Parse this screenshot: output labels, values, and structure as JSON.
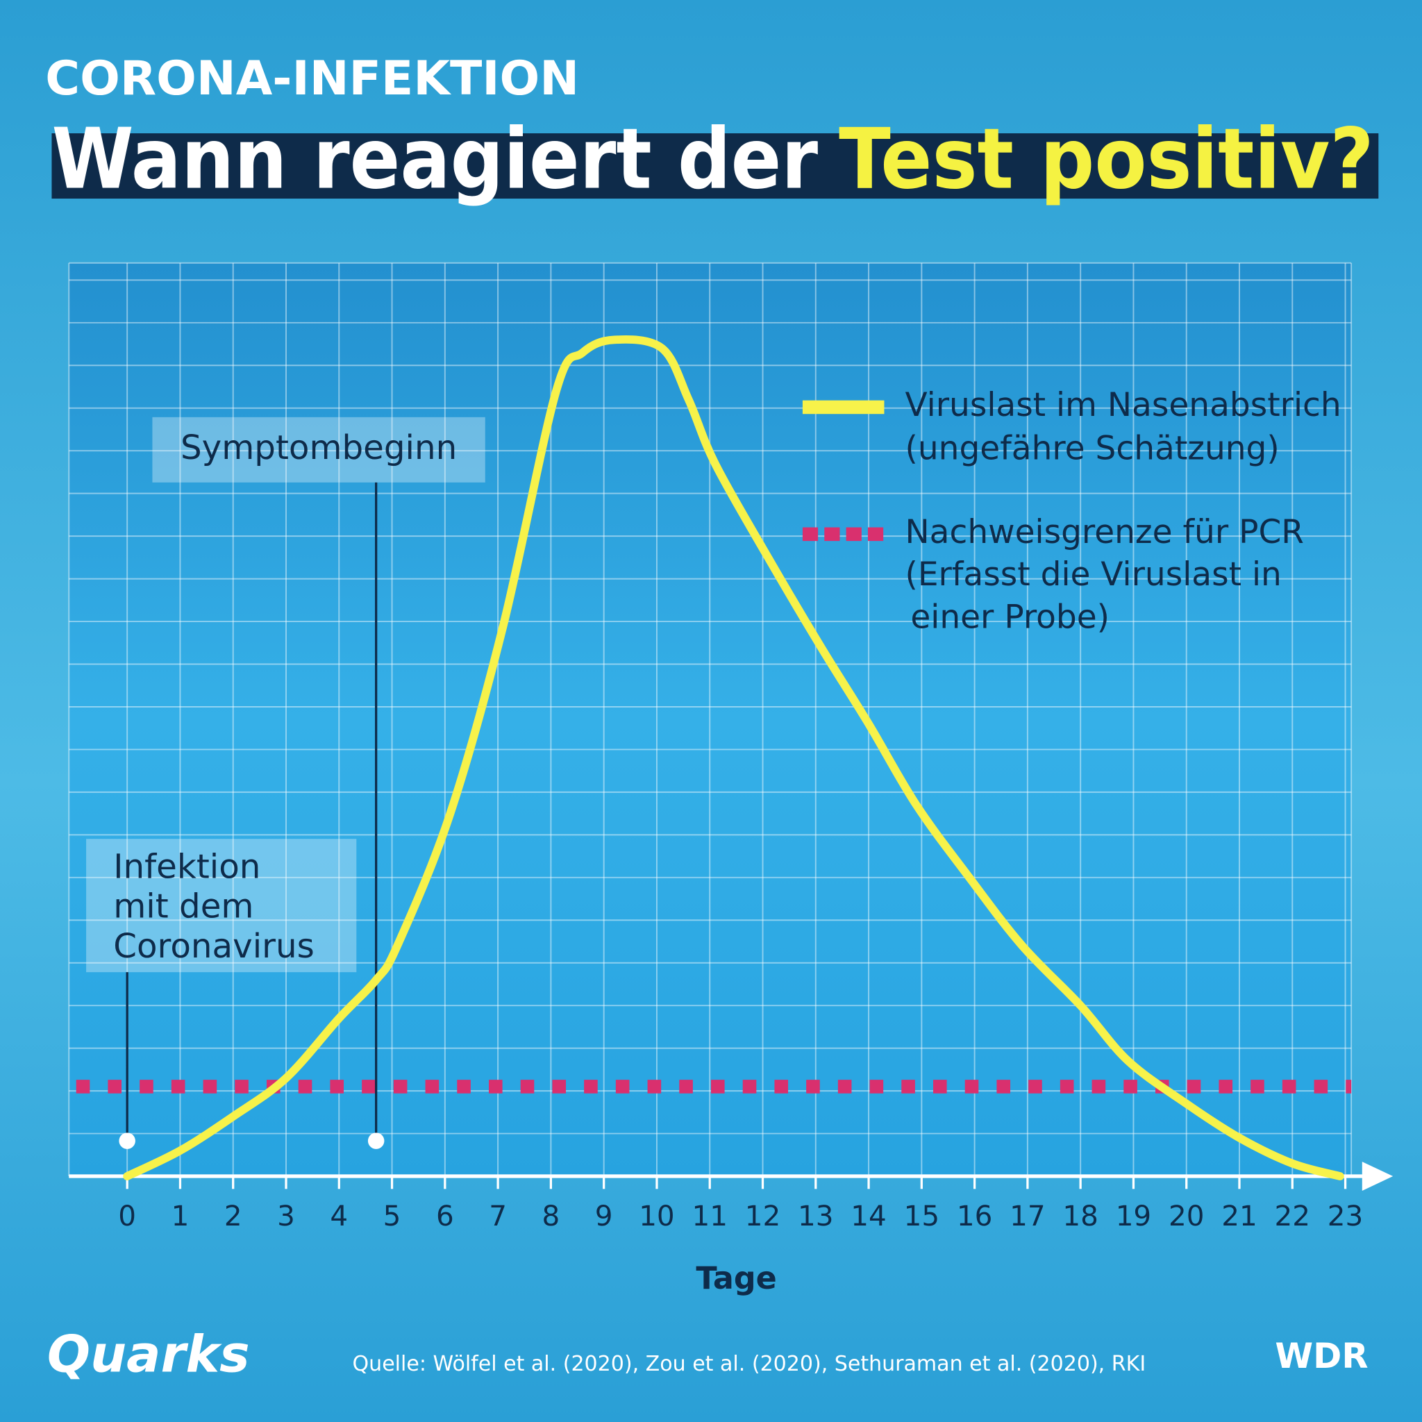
{
  "chart_data": {
    "type": "line",
    "kicker": "CORONA-INFEKTION",
    "title": [
      "Wann reagiert der",
      "Test positiv?"
    ],
    "x_label": "Tage",
    "source": "Quelle: Wölfel et al. (2020), Zou et al. (2020), Sethuraman et al. (2020), RKI",
    "logos": [
      "Quarks",
      "WDR"
    ],
    "x": [
      0,
      1,
      2,
      3,
      4,
      4.7,
      5.1,
      6.1,
      7.1,
      8.1,
      8.6,
      9.2,
      10.1,
      10.6,
      11.1,
      12.1,
      13.1,
      14,
      14.9,
      15.9,
      16.9,
      18,
      18.9,
      20,
      21,
      22,
      22.9
    ],
    "series": [
      {
        "name": "Viruslast im Nasenabstrich",
        "description": [
          "(ungefähre Schätzung)"
        ],
        "color": "#f7f24a",
        "values": [
          0,
          0.6,
          1.4,
          2.3,
          3.7,
          4.6,
          5.4,
          8.5,
          12.9,
          18.4,
          19.3,
          19.6,
          19.4,
          18.2,
          16.7,
          14.5,
          12.4,
          10.6,
          8.7,
          7,
          5.4,
          4,
          2.7,
          1.7,
          0.9,
          0.3,
          0
        ]
      }
    ],
    "threshold": {
      "name": "Nachweisgrenze für PCR",
      "description": [
        "(Erfasst die Viruslast in",
        "einer Probe)"
      ],
      "color": "#d9306e",
      "value": 2.1
    },
    "annotations": [
      {
        "x": 4.7,
        "text": [
          "Symptombeginn"
        ]
      },
      {
        "x": 0,
        "text": [
          "Infektion",
          "mit dem",
          "Coronavirus"
        ]
      }
    ],
    "xlim": [
      -1.1,
      23.9
    ],
    "ylim": [
      0,
      21.4
    ],
    "xticks": [
      0,
      1,
      2,
      3,
      4,
      5,
      6,
      7,
      8,
      9,
      10,
      11,
      12,
      13,
      14,
      15,
      16,
      17,
      18,
      19,
      20,
      21,
      22,
      23
    ],
    "grid": true
  }
}
